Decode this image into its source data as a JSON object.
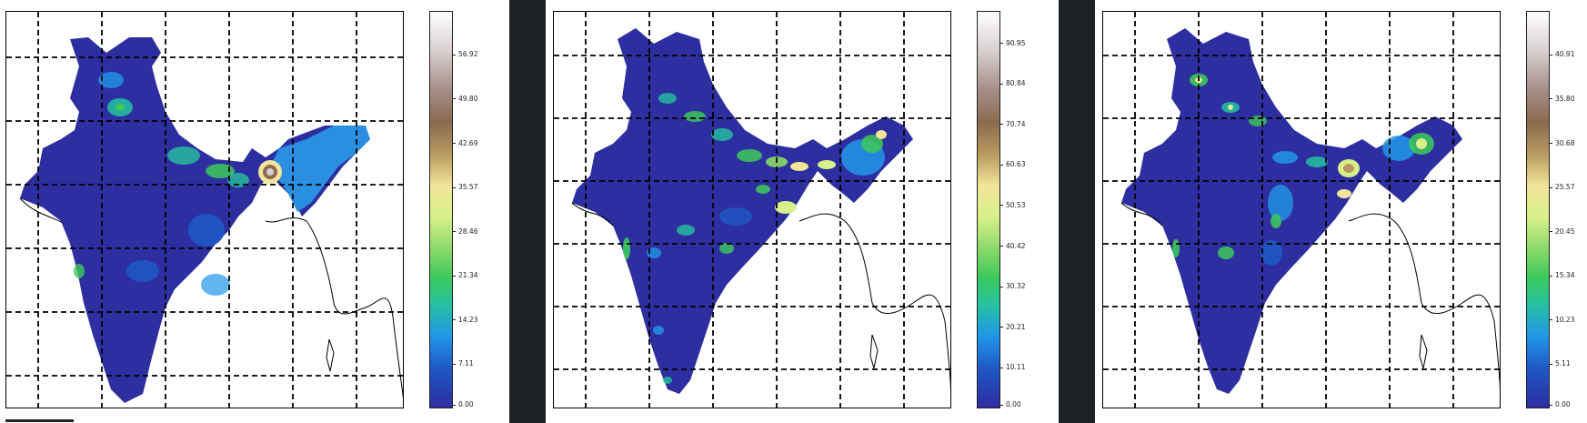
{
  "panels": [
    {
      "name": "panel-1",
      "colorbar": {
        "ticks": [
          "0.00",
          "7.11",
          "14.23",
          "21.34",
          "28.46",
          "35.57",
          "42.69",
          "49.80",
          "56.92"
        ],
        "tick_values": [
          0.0,
          7.11,
          14.23,
          21.34,
          28.46,
          35.57,
          42.69,
          49.8,
          56.92
        ],
        "max": 64.0
      }
    },
    {
      "name": "panel-2",
      "colorbar": {
        "ticks": [
          "0.00",
          "10.11",
          "20.21",
          "30.32",
          "40.42",
          "50.53",
          "60.63",
          "70.74",
          "80.84",
          "90.95"
        ],
        "tick_values": [
          0.0,
          10.11,
          20.21,
          30.32,
          40.42,
          50.53,
          60.63,
          70.74,
          80.84,
          90.95
        ],
        "max": 99.0
      }
    },
    {
      "name": "panel-3",
      "colorbar": {
        "ticks": [
          "0.00",
          "5.11",
          "10.23",
          "15.34",
          "20.45",
          "25.57",
          "30.68",
          "35.80",
          "40.91"
        ],
        "tick_values": [
          0.0,
          5.11,
          10.23,
          15.34,
          20.45,
          25.57,
          30.68,
          35.8,
          40.91
        ],
        "max": 46.0
      }
    }
  ],
  "colors": {
    "land_base": "#2d2ea0",
    "grid_line": "#000000",
    "coast_line": "#000000",
    "page_background": "#ffffff",
    "strip_background": "#1e2224"
  }
}
